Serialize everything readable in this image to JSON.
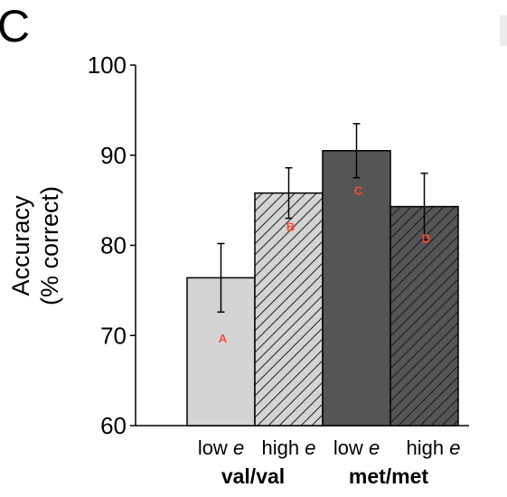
{
  "panel_label": "C",
  "chart_data": {
    "type": "bar",
    "ylabel_lines": [
      "Accuracy",
      "(% correct)"
    ],
    "ylim": [
      60,
      100
    ],
    "yticks": [
      60,
      70,
      80,
      90,
      100
    ],
    "grid": false,
    "categories": [
      {
        "main": "low ",
        "italic": "e",
        "label": "A"
      },
      {
        "main": "high ",
        "italic": "e",
        "label": "B"
      },
      {
        "main": "low ",
        "italic": "e",
        "label": "C"
      },
      {
        "main": "high ",
        "italic": "e",
        "label": "D"
      }
    ],
    "groups": [
      "val/val",
      "met/met"
    ],
    "values": [
      76.4,
      85.8,
      90.5,
      84.3
    ],
    "errors": [
      3.8,
      2.8,
      3.0,
      3.7
    ],
    "bar_colors": [
      "#d4d4d4",
      "#d4d4d4",
      "#555555",
      "#555555"
    ],
    "hatched": [
      false,
      true,
      false,
      true
    ],
    "label_color": "#ff4b33"
  }
}
